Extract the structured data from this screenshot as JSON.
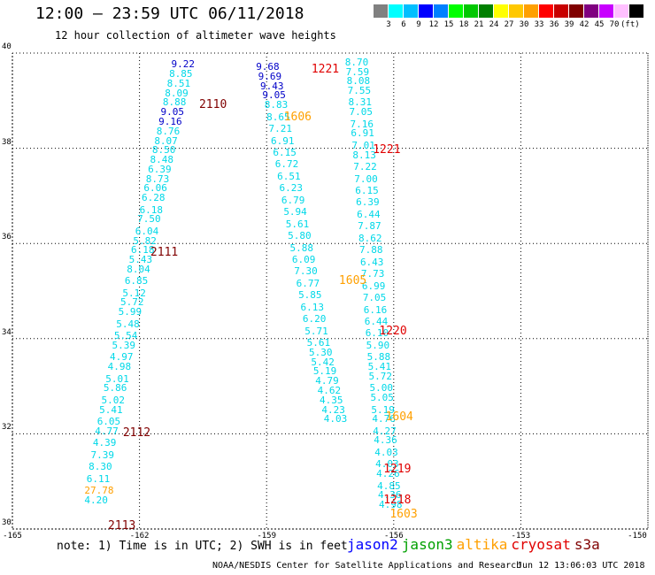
{
  "title": "12:00 – 23:59 UTC 06/11/2018",
  "subtitle": "12 hour collection of altimeter wave heights",
  "colorbar": {
    "colors": [
      "#808080",
      "#00ffff",
      "#00bfff",
      "#0000ff",
      "#0080ff",
      "#00ff00",
      "#00c800",
      "#008000",
      "#ffff00",
      "#ffc800",
      "#ffa000",
      "#ff0000",
      "#c80000",
      "#800000",
      "#800080",
      "#c800ff",
      "#ffc0ff",
      "#000000"
    ],
    "labels": [
      "3",
      "6",
      "9",
      "12",
      "15",
      "18",
      "21",
      "24",
      "27",
      "30",
      "33",
      "36",
      "39",
      "42",
      "45",
      "70",
      "(ft)"
    ]
  },
  "axes": {
    "lon_min": -165,
    "lon_max": -150,
    "lat_min": 30,
    "lat_max": 40,
    "x_ticks": [
      "-165",
      "-162",
      "-159",
      "-156",
      "-153",
      "-150"
    ],
    "y_ticks": [
      "30",
      "32",
      "34",
      "36",
      "38",
      "40"
    ]
  },
  "colors": {
    "cyan": "#00d8e8",
    "blue": "#0000c8",
    "jason2": "#0000ff",
    "jason3": "#00a000",
    "altika": "#ffa000",
    "cryosat": "#e00000",
    "s3a": "#800000"
  },
  "track_left": [
    {
      "lon": -161.0,
      "lat": 39.75,
      "v": "9.22",
      "c": "blue"
    },
    {
      "lon": -161.05,
      "lat": 39.55,
      "v": "8.85",
      "c": "cyan"
    },
    {
      "lon": -161.1,
      "lat": 39.35,
      "v": "8.51",
      "c": "cyan"
    },
    {
      "lon": -161.15,
      "lat": 39.15,
      "v": "8.09",
      "c": "cyan"
    },
    {
      "lon": -161.2,
      "lat": 38.95,
      "v": "8.88",
      "c": "cyan"
    },
    {
      "lon": -161.25,
      "lat": 38.75,
      "v": "9.05",
      "c": "blue"
    },
    {
      "lon": -161.3,
      "lat": 38.55,
      "v": "9.16",
      "c": "blue"
    },
    {
      "lon": -161.35,
      "lat": 38.35,
      "v": "8.76",
      "c": "cyan"
    },
    {
      "lon": -161.4,
      "lat": 38.15,
      "v": "8.07",
      "c": "cyan"
    },
    {
      "lon": -161.45,
      "lat": 37.95,
      "v": "8.50",
      "c": "cyan"
    },
    {
      "lon": -161.5,
      "lat": 37.75,
      "v": "8.48",
      "c": "cyan"
    },
    {
      "lon": -161.55,
      "lat": 37.55,
      "v": "6.39",
      "c": "cyan"
    },
    {
      "lon": -161.6,
      "lat": 37.35,
      "v": "8.73",
      "c": "cyan"
    },
    {
      "lon": -161.65,
      "lat": 37.15,
      "v": "6.06",
      "c": "cyan"
    },
    {
      "lon": -161.7,
      "lat": 36.95,
      "v": "6.28",
      "c": "cyan"
    },
    {
      "lon": -161.75,
      "lat": 36.7,
      "v": "6.18",
      "c": "cyan"
    },
    {
      "lon": -161.8,
      "lat": 36.5,
      "v": "7.50",
      "c": "cyan"
    },
    {
      "lon": -161.85,
      "lat": 36.25,
      "v": "6.04",
      "c": "cyan"
    },
    {
      "lon": -161.9,
      "lat": 36.05,
      "v": "5.82",
      "c": "cyan"
    },
    {
      "lon": -161.95,
      "lat": 35.85,
      "v": "6.18",
      "c": "cyan"
    },
    {
      "lon": -162.0,
      "lat": 35.65,
      "v": "5.43",
      "c": "cyan"
    },
    {
      "lon": -162.05,
      "lat": 35.45,
      "v": "8.04",
      "c": "cyan"
    },
    {
      "lon": -162.1,
      "lat": 35.2,
      "v": "6.85",
      "c": "cyan"
    },
    {
      "lon": -162.15,
      "lat": 34.95,
      "v": "5.12",
      "c": "cyan"
    },
    {
      "lon": -162.2,
      "lat": 34.75,
      "v": "5.72",
      "c": "cyan"
    },
    {
      "lon": -162.25,
      "lat": 34.55,
      "v": "5.99",
      "c": "cyan"
    },
    {
      "lon": -162.3,
      "lat": 34.3,
      "v": "5.48",
      "c": "cyan"
    },
    {
      "lon": -162.35,
      "lat": 34.05,
      "v": "5.54",
      "c": "cyan"
    },
    {
      "lon": -162.4,
      "lat": 33.85,
      "v": "5.39",
      "c": "cyan"
    },
    {
      "lon": -162.45,
      "lat": 33.6,
      "v": "4.97",
      "c": "cyan"
    },
    {
      "lon": -162.5,
      "lat": 33.4,
      "v": "4.98",
      "c": "cyan"
    },
    {
      "lon": -162.55,
      "lat": 33.15,
      "v": "5.01",
      "c": "cyan"
    },
    {
      "lon": -162.6,
      "lat": 32.95,
      "v": "5.86",
      "c": "cyan"
    },
    {
      "lon": -162.65,
      "lat": 32.7,
      "v": "5.02",
      "c": "cyan"
    },
    {
      "lon": -162.7,
      "lat": 32.5,
      "v": "5.41",
      "c": "cyan"
    },
    {
      "lon": -162.75,
      "lat": 32.25,
      "v": "6.05",
      "c": "cyan"
    },
    {
      "lon": -162.8,
      "lat": 32.05,
      "v": "4.77",
      "c": "cyan"
    },
    {
      "lon": -162.85,
      "lat": 31.8,
      "v": "4.39",
      "c": "cyan"
    },
    {
      "lon": -162.9,
      "lat": 31.55,
      "v": "7.39",
      "c": "cyan"
    },
    {
      "lon": -162.95,
      "lat": 31.3,
      "v": "8.30",
      "c": "cyan"
    },
    {
      "lon": -163.0,
      "lat": 31.05,
      "v": "6.11",
      "c": "cyan"
    },
    {
      "lon": -163.05,
      "lat": 30.8,
      "v": "27.78",
      "c": "altika"
    },
    {
      "lon": -163.05,
      "lat": 30.6,
      "v": "4.20",
      "c": "cyan"
    }
  ],
  "track_mid": [
    {
      "lon": -159.0,
      "lat": 39.7,
      "v": "9.68",
      "c": "blue"
    },
    {
      "lon": -158.95,
      "lat": 39.5,
      "v": "9.69",
      "c": "blue"
    },
    {
      "lon": -158.9,
      "lat": 39.3,
      "v": "9.43",
      "c": "blue"
    },
    {
      "lon": -158.85,
      "lat": 39.1,
      "v": "9.05",
      "c": "blue"
    },
    {
      "lon": -158.8,
      "lat": 38.9,
      "v": "8.83",
      "c": "cyan"
    },
    {
      "lon": -158.75,
      "lat": 38.65,
      "v": "8.65",
      "c": "cyan"
    },
    {
      "lon": -158.7,
      "lat": 38.4,
      "v": "7.21",
      "c": "cyan"
    },
    {
      "lon": -158.65,
      "lat": 38.15,
      "v": "6.91",
      "c": "cyan"
    },
    {
      "lon": -158.6,
      "lat": 37.9,
      "v": "6.15",
      "c": "cyan"
    },
    {
      "lon": -158.55,
      "lat": 37.65,
      "v": "6.72",
      "c": "cyan"
    },
    {
      "lon": -158.5,
      "lat": 37.4,
      "v": "6.51",
      "c": "cyan"
    },
    {
      "lon": -158.45,
      "lat": 37.15,
      "v": "6.23",
      "c": "cyan"
    },
    {
      "lon": -158.4,
      "lat": 36.9,
      "v": "6.79",
      "c": "cyan"
    },
    {
      "lon": -158.35,
      "lat": 36.65,
      "v": "5.94",
      "c": "cyan"
    },
    {
      "lon": -158.3,
      "lat": 36.4,
      "v": "5.61",
      "c": "cyan"
    },
    {
      "lon": -158.25,
      "lat": 36.15,
      "v": "5.80",
      "c": "cyan"
    },
    {
      "lon": -158.2,
      "lat": 35.9,
      "v": "5.88",
      "c": "cyan"
    },
    {
      "lon": -158.15,
      "lat": 35.65,
      "v": "6.09",
      "c": "cyan"
    },
    {
      "lon": -158.1,
      "lat": 35.4,
      "v": "7.30",
      "c": "cyan"
    },
    {
      "lon": -158.05,
      "lat": 35.15,
      "v": "6.77",
      "c": "cyan"
    },
    {
      "lon": -158.0,
      "lat": 34.9,
      "v": "5.85",
      "c": "cyan"
    },
    {
      "lon": -157.95,
      "lat": 34.65,
      "v": "6.13",
      "c": "cyan"
    },
    {
      "lon": -157.9,
      "lat": 34.4,
      "v": "6.20",
      "c": "cyan"
    },
    {
      "lon": -157.85,
      "lat": 34.15,
      "v": "5.71",
      "c": "cyan"
    },
    {
      "lon": -157.8,
      "lat": 33.9,
      "v": "5.61",
      "c": "cyan"
    },
    {
      "lon": -157.75,
      "lat": 33.7,
      "v": "5.30",
      "c": "cyan"
    },
    {
      "lon": -157.7,
      "lat": 33.5,
      "v": "5.42",
      "c": "cyan"
    },
    {
      "lon": -157.65,
      "lat": 33.3,
      "v": "5.19",
      "c": "cyan"
    },
    {
      "lon": -157.6,
      "lat": 33.1,
      "v": "4.79",
      "c": "cyan"
    },
    {
      "lon": -157.55,
      "lat": 32.9,
      "v": "4.62",
      "c": "cyan"
    },
    {
      "lon": -157.5,
      "lat": 32.7,
      "v": "4.35",
      "c": "cyan"
    },
    {
      "lon": -157.45,
      "lat": 32.5,
      "v": "4.23",
      "c": "cyan"
    },
    {
      "lon": -157.4,
      "lat": 32.3,
      "v": "4.03",
      "c": "cyan"
    }
  ],
  "track_right": [
    {
      "lon": -156.9,
      "lat": 39.8,
      "v": "8.70",
      "c": "cyan"
    },
    {
      "lon": -156.88,
      "lat": 39.6,
      "v": "7.59",
      "c": "cyan"
    },
    {
      "lon": -156.86,
      "lat": 39.4,
      "v": "8.08",
      "c": "cyan"
    },
    {
      "lon": -156.84,
      "lat": 39.2,
      "v": "7.55",
      "c": "cyan"
    },
    {
      "lon": -156.82,
      "lat": 38.95,
      "v": "8.31",
      "c": "cyan"
    },
    {
      "lon": -156.8,
      "lat": 38.75,
      "v": "7.05",
      "c": "cyan"
    },
    {
      "lon": -156.78,
      "lat": 38.5,
      "v": "7.16",
      "c": "cyan"
    },
    {
      "lon": -156.76,
      "lat": 38.3,
      "v": "6.91",
      "c": "cyan"
    },
    {
      "lon": -156.74,
      "lat": 38.05,
      "v": "7.01",
      "c": "cyan"
    },
    {
      "lon": -156.72,
      "lat": 37.85,
      "v": "8.13",
      "c": "cyan"
    },
    {
      "lon": -156.7,
      "lat": 37.6,
      "v": "7.22",
      "c": "cyan"
    },
    {
      "lon": -156.68,
      "lat": 37.35,
      "v": "7.00",
      "c": "cyan"
    },
    {
      "lon": -156.66,
      "lat": 37.1,
      "v": "6.15",
      "c": "cyan"
    },
    {
      "lon": -156.64,
      "lat": 36.85,
      "v": "6.39",
      "c": "cyan"
    },
    {
      "lon": -156.62,
      "lat": 36.6,
      "v": "6.44",
      "c": "cyan"
    },
    {
      "lon": -156.6,
      "lat": 36.35,
      "v": "7.87",
      "c": "cyan"
    },
    {
      "lon": -156.58,
      "lat": 36.1,
      "v": "8.62",
      "c": "cyan"
    },
    {
      "lon": -156.56,
      "lat": 35.85,
      "v": "7.88",
      "c": "cyan"
    },
    {
      "lon": -156.54,
      "lat": 35.6,
      "v": "6.43",
      "c": "cyan"
    },
    {
      "lon": -156.52,
      "lat": 35.35,
      "v": "7.73",
      "c": "cyan"
    },
    {
      "lon": -156.5,
      "lat": 35.1,
      "v": "6.99",
      "c": "cyan"
    },
    {
      "lon": -156.48,
      "lat": 34.85,
      "v": "7.05",
      "c": "cyan"
    },
    {
      "lon": -156.46,
      "lat": 34.6,
      "v": "6.16",
      "c": "cyan"
    },
    {
      "lon": -156.44,
      "lat": 34.35,
      "v": "6.44",
      "c": "cyan"
    },
    {
      "lon": -156.42,
      "lat": 34.1,
      "v": "6.10",
      "c": "cyan"
    },
    {
      "lon": -156.4,
      "lat": 33.85,
      "v": "5.90",
      "c": "cyan"
    },
    {
      "lon": -156.38,
      "lat": 33.6,
      "v": "5.88",
      "c": "cyan"
    },
    {
      "lon": -156.36,
      "lat": 33.4,
      "v": "5.41",
      "c": "cyan"
    },
    {
      "lon": -156.34,
      "lat": 33.2,
      "v": "5.72",
      "c": "cyan"
    },
    {
      "lon": -156.32,
      "lat": 32.95,
      "v": "5.00",
      "c": "cyan"
    },
    {
      "lon": -156.3,
      "lat": 32.75,
      "v": "5.05",
      "c": "cyan"
    },
    {
      "lon": -156.28,
      "lat": 32.5,
      "v": "5.19",
      "c": "cyan"
    },
    {
      "lon": -156.26,
      "lat": 32.3,
      "v": "4.76",
      "c": "cyan"
    },
    {
      "lon": -156.24,
      "lat": 32.05,
      "v": "4.27",
      "c": "cyan"
    },
    {
      "lon": -156.22,
      "lat": 31.85,
      "v": "4.36",
      "c": "cyan"
    },
    {
      "lon": -156.2,
      "lat": 31.6,
      "v": "4.03",
      "c": "cyan"
    },
    {
      "lon": -156.18,
      "lat": 31.35,
      "v": "4.03",
      "c": "cyan"
    },
    {
      "lon": -156.16,
      "lat": 31.15,
      "v": "4.26",
      "c": "cyan"
    },
    {
      "lon": -156.14,
      "lat": 30.9,
      "v": "4.85",
      "c": "cyan"
    },
    {
      "lon": -156.12,
      "lat": 30.7,
      "v": "4.36",
      "c": "cyan"
    },
    {
      "lon": -156.1,
      "lat": 30.5,
      "v": "4.98",
      "c": "cyan"
    }
  ],
  "pass_labels": [
    {
      "lon": -160.3,
      "lat": 38.9,
      "t": "2110",
      "c": "s3a"
    },
    {
      "lon": -161.45,
      "lat": 35.8,
      "t": "2111",
      "c": "s3a"
    },
    {
      "lon": -162.1,
      "lat": 32.0,
      "t": "2112",
      "c": "s3a"
    },
    {
      "lon": -162.45,
      "lat": 30.05,
      "t": "2113",
      "c": "s3a"
    },
    {
      "lon": -157.65,
      "lat": 39.65,
      "t": "1221",
      "c": "cryosat"
    },
    {
      "lon": -156.2,
      "lat": 37.95,
      "t": "1221",
      "c": "cryosat"
    },
    {
      "lon": -156.05,
      "lat": 34.15,
      "t": "1220",
      "c": "cryosat"
    },
    {
      "lon": -155.95,
      "lat": 31.25,
      "t": "1219",
      "c": "cryosat"
    },
    {
      "lon": -155.95,
      "lat": 30.6,
      "t": "1218",
      "c": "cryosat"
    },
    {
      "lon": -158.3,
      "lat": 38.65,
      "t": "1606",
      "c": "altika"
    },
    {
      "lon": -157.0,
      "lat": 35.2,
      "t": "1605",
      "c": "altika"
    },
    {
      "lon": -155.9,
      "lat": 32.35,
      "t": "1604",
      "c": "altika"
    },
    {
      "lon": -155.8,
      "lat": 30.3,
      "t": "1603",
      "c": "altika"
    }
  ],
  "note": "note:  1) Time is in UTC;  2) SWH is in feet",
  "legend": [
    {
      "name": "jason2",
      "c": "jason2"
    },
    {
      "name": "jason3",
      "c": "jason3"
    },
    {
      "name": "altika",
      "c": "altika"
    },
    {
      "name": "cryosat",
      "c": "cryosat"
    },
    {
      "name": "s3a",
      "c": "s3a"
    }
  ],
  "credit": "NOAA/NESDIS Center for Satellite Applications and Research",
  "timestamp": "Jun 12 13:06:03 UTC 2018"
}
